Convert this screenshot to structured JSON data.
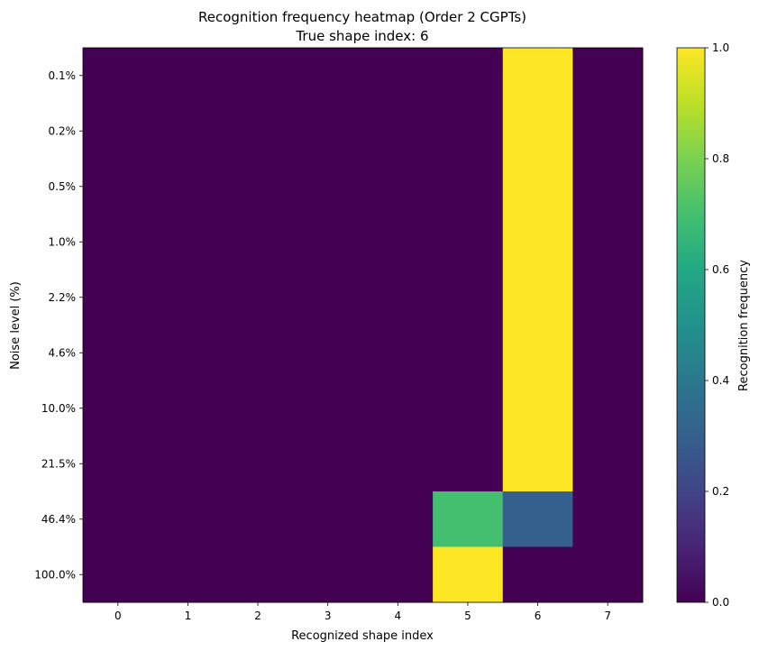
{
  "chart_data": {
    "type": "heatmap",
    "title": "Recognition frequency heatmap (Order 2 CGPTs)",
    "subtitle": "True shape index: 6",
    "xlabel": "Recognized shape index",
    "ylabel": "Noise level (%)",
    "x_categories": [
      "0",
      "1",
      "2",
      "3",
      "4",
      "5",
      "6",
      "7"
    ],
    "y_categories": [
      "0.1%",
      "0.2%",
      "0.5%",
      "1.0%",
      "2.2%",
      "4.6%",
      "10.0%",
      "21.5%",
      "46.4%",
      "100.0%"
    ],
    "values": [
      [
        0,
        0,
        0,
        0,
        0,
        0,
        1,
        0
      ],
      [
        0,
        0,
        0,
        0,
        0,
        0,
        1,
        0
      ],
      [
        0,
        0,
        0,
        0,
        0,
        0,
        1,
        0
      ],
      [
        0,
        0,
        0,
        0,
        0,
        0,
        1,
        0
      ],
      [
        0,
        0,
        0,
        0,
        0,
        0,
        1,
        0
      ],
      [
        0,
        0,
        0,
        0,
        0,
        0,
        1,
        0
      ],
      [
        0,
        0,
        0,
        0,
        0,
        0,
        1,
        0
      ],
      [
        0,
        0,
        0,
        0,
        0,
        0,
        1,
        0
      ],
      [
        0,
        0,
        0,
        0,
        0,
        0.7,
        0.3,
        0
      ],
      [
        0,
        0,
        0,
        0,
        0,
        1,
        0,
        0
      ]
    ],
    "colorbar": {
      "label": "Recognition frequency",
      "range": [
        0,
        1
      ],
      "ticks": [
        "0.0",
        "0.2",
        "0.4",
        "0.6",
        "0.8",
        "1.0"
      ],
      "colormap": "viridis"
    },
    "grid": false
  }
}
